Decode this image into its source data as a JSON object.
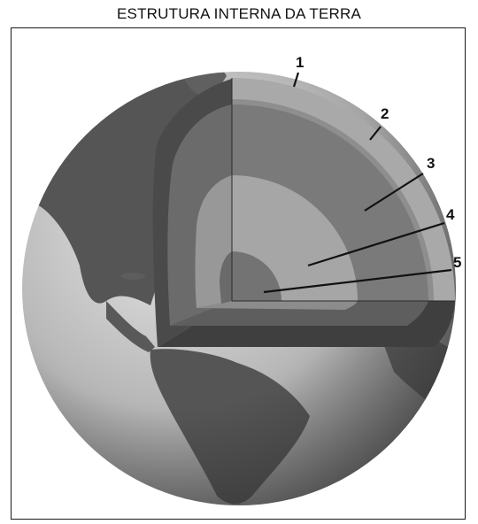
{
  "title": "ESTRUTURA INTERNA DA TERRA",
  "labels": [
    "1",
    "2",
    "3",
    "4",
    "5"
  ],
  "colors": {
    "background": "#ffffff",
    "frame": "#1a1a1a",
    "ocean_light": "#dcdcdc",
    "ocean_dark": "#8a8a8a",
    "land": "#5a5a5a",
    "crust": "#a9a9a9",
    "upper_mantle": "#8c8c8c",
    "lower_mantle": "#787878",
    "outer_core": "#a2a2a2",
    "inner_core": "#6e6e6e"
  }
}
